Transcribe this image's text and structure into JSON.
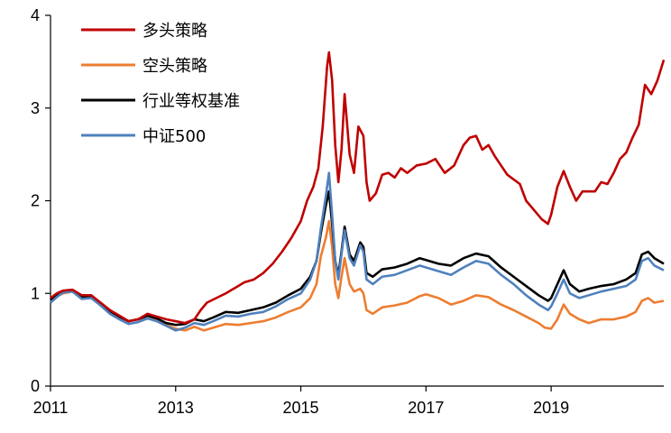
{
  "chart_data": {
    "type": "line",
    "title": "",
    "xlabel": "",
    "ylabel": "",
    "xlim": [
      2011.0,
      2020.8
    ],
    "ylim": [
      0,
      4
    ],
    "x_ticks": [
      "2011",
      "2013",
      "2015",
      "2017",
      "2019"
    ],
    "y_ticks": [
      "0",
      "1",
      "2",
      "3",
      "4"
    ],
    "grid": false,
    "legend_position": "top-left",
    "series": [
      {
        "name": "多头策略",
        "color": "#c00000",
        "points": [
          [
            2011.0,
            0.95
          ],
          [
            2011.1,
            1.0
          ],
          [
            2011.2,
            1.03
          ],
          [
            2011.35,
            1.04
          ],
          [
            2011.5,
            0.98
          ],
          [
            2011.65,
            0.98
          ],
          [
            2011.8,
            0.9
          ],
          [
            2011.95,
            0.82
          ],
          [
            2012.1,
            0.76
          ],
          [
            2012.25,
            0.7
          ],
          [
            2012.4,
            0.72
          ],
          [
            2012.55,
            0.78
          ],
          [
            2012.7,
            0.75
          ],
          [
            2012.85,
            0.72
          ],
          [
            2013.0,
            0.7
          ],
          [
            2013.15,
            0.68
          ],
          [
            2013.3,
            0.72
          ],
          [
            2013.4,
            0.82
          ],
          [
            2013.5,
            0.9
          ],
          [
            2013.65,
            0.95
          ],
          [
            2013.8,
            1.0
          ],
          [
            2013.95,
            1.06
          ],
          [
            2014.1,
            1.12
          ],
          [
            2014.25,
            1.15
          ],
          [
            2014.4,
            1.22
          ],
          [
            2014.55,
            1.32
          ],
          [
            2014.7,
            1.45
          ],
          [
            2014.85,
            1.6
          ],
          [
            2015.0,
            1.78
          ],
          [
            2015.1,
            2.0
          ],
          [
            2015.2,
            2.15
          ],
          [
            2015.28,
            2.35
          ],
          [
            2015.35,
            2.8
          ],
          [
            2015.42,
            3.45
          ],
          [
            2015.45,
            3.6
          ],
          [
            2015.5,
            3.3
          ],
          [
            2015.55,
            2.6
          ],
          [
            2015.6,
            2.2
          ],
          [
            2015.65,
            2.55
          ],
          [
            2015.7,
            3.15
          ],
          [
            2015.78,
            2.5
          ],
          [
            2015.85,
            2.3
          ],
          [
            2015.92,
            2.8
          ],
          [
            2016.0,
            2.7
          ],
          [
            2016.05,
            2.2
          ],
          [
            2016.1,
            2.0
          ],
          [
            2016.2,
            2.08
          ],
          [
            2016.3,
            2.28
          ],
          [
            2016.4,
            2.3
          ],
          [
            2016.5,
            2.25
          ],
          [
            2016.6,
            2.35
          ],
          [
            2016.7,
            2.3
          ],
          [
            2016.85,
            2.38
          ],
          [
            2017.0,
            2.4
          ],
          [
            2017.15,
            2.45
          ],
          [
            2017.3,
            2.3
          ],
          [
            2017.45,
            2.38
          ],
          [
            2017.6,
            2.6
          ],
          [
            2017.7,
            2.68
          ],
          [
            2017.8,
            2.7
          ],
          [
            2017.9,
            2.55
          ],
          [
            2018.0,
            2.6
          ],
          [
            2018.1,
            2.48
          ],
          [
            2018.3,
            2.28
          ],
          [
            2018.5,
            2.18
          ],
          [
            2018.6,
            2.0
          ],
          [
            2018.75,
            1.88
          ],
          [
            2018.85,
            1.8
          ],
          [
            2018.95,
            1.75
          ],
          [
            2019.0,
            1.85
          ],
          [
            2019.1,
            2.15
          ],
          [
            2019.2,
            2.32
          ],
          [
            2019.3,
            2.15
          ],
          [
            2019.4,
            2.0
          ],
          [
            2019.5,
            2.1
          ],
          [
            2019.6,
            2.1
          ],
          [
            2019.7,
            2.1
          ],
          [
            2019.8,
            2.2
          ],
          [
            2019.9,
            2.18
          ],
          [
            2020.0,
            2.3
          ],
          [
            2020.1,
            2.45
          ],
          [
            2020.2,
            2.52
          ],
          [
            2020.3,
            2.68
          ],
          [
            2020.4,
            2.82
          ],
          [
            2020.5,
            3.25
          ],
          [
            2020.6,
            3.15
          ],
          [
            2020.7,
            3.3
          ],
          [
            2020.8,
            3.52
          ]
        ]
      },
      {
        "name": "空头策略",
        "color": "#ed7d31",
        "points": [
          [
            2011.0,
            0.92
          ],
          [
            2011.1,
            0.97
          ],
          [
            2011.2,
            1.0
          ],
          [
            2011.35,
            1.02
          ],
          [
            2011.5,
            0.95
          ],
          [
            2011.65,
            0.95
          ],
          [
            2011.8,
            0.88
          ],
          [
            2011.95,
            0.8
          ],
          [
            2012.1,
            0.74
          ],
          [
            2012.25,
            0.7
          ],
          [
            2012.4,
            0.72
          ],
          [
            2012.55,
            0.76
          ],
          [
            2012.7,
            0.72
          ],
          [
            2012.85,
            0.66
          ],
          [
            2013.0,
            0.62
          ],
          [
            2013.15,
            0.6
          ],
          [
            2013.3,
            0.64
          ],
          [
            2013.45,
            0.6
          ],
          [
            2013.6,
            0.63
          ],
          [
            2013.8,
            0.67
          ],
          [
            2014.0,
            0.66
          ],
          [
            2014.2,
            0.68
          ],
          [
            2014.4,
            0.7
          ],
          [
            2014.6,
            0.74
          ],
          [
            2014.8,
            0.8
          ],
          [
            2015.0,
            0.85
          ],
          [
            2015.15,
            0.95
          ],
          [
            2015.25,
            1.1
          ],
          [
            2015.32,
            1.4
          ],
          [
            2015.4,
            1.6
          ],
          [
            2015.45,
            1.78
          ],
          [
            2015.5,
            1.5
          ],
          [
            2015.55,
            1.1
          ],
          [
            2015.6,
            0.95
          ],
          [
            2015.65,
            1.18
          ],
          [
            2015.7,
            1.38
          ],
          [
            2015.78,
            1.1
          ],
          [
            2015.85,
            1.02
          ],
          [
            2015.95,
            1.05
          ],
          [
            2016.0,
            1.0
          ],
          [
            2016.05,
            0.82
          ],
          [
            2016.15,
            0.78
          ],
          [
            2016.3,
            0.85
          ],
          [
            2016.5,
            0.87
          ],
          [
            2016.7,
            0.9
          ],
          [
            2016.9,
            0.97
          ],
          [
            2017.0,
            0.99
          ],
          [
            2017.2,
            0.95
          ],
          [
            2017.4,
            0.88
          ],
          [
            2017.6,
            0.92
          ],
          [
            2017.8,
            0.98
          ],
          [
            2018.0,
            0.96
          ],
          [
            2018.2,
            0.88
          ],
          [
            2018.4,
            0.82
          ],
          [
            2018.6,
            0.75
          ],
          [
            2018.8,
            0.68
          ],
          [
            2018.9,
            0.63
          ],
          [
            2019.0,
            0.62
          ],
          [
            2019.1,
            0.72
          ],
          [
            2019.2,
            0.88
          ],
          [
            2019.3,
            0.78
          ],
          [
            2019.45,
            0.72
          ],
          [
            2019.6,
            0.68
          ],
          [
            2019.8,
            0.72
          ],
          [
            2020.0,
            0.72
          ],
          [
            2020.2,
            0.75
          ],
          [
            2020.35,
            0.8
          ],
          [
            2020.45,
            0.92
          ],
          [
            2020.55,
            0.95
          ],
          [
            2020.65,
            0.9
          ],
          [
            2020.8,
            0.92
          ]
        ]
      },
      {
        "name": "行业等权基准",
        "color": "#000000",
        "points": [
          [
            2011.0,
            0.93
          ],
          [
            2011.1,
            0.98
          ],
          [
            2011.2,
            1.02
          ],
          [
            2011.35,
            1.03
          ],
          [
            2011.5,
            0.96
          ],
          [
            2011.65,
            0.96
          ],
          [
            2011.8,
            0.89
          ],
          [
            2011.95,
            0.81
          ],
          [
            2012.1,
            0.75
          ],
          [
            2012.25,
            0.7
          ],
          [
            2012.4,
            0.72
          ],
          [
            2012.55,
            0.76
          ],
          [
            2012.7,
            0.73
          ],
          [
            2012.85,
            0.68
          ],
          [
            2013.0,
            0.66
          ],
          [
            2013.15,
            0.67
          ],
          [
            2013.3,
            0.72
          ],
          [
            2013.45,
            0.7
          ],
          [
            2013.6,
            0.74
          ],
          [
            2013.8,
            0.8
          ],
          [
            2014.0,
            0.79
          ],
          [
            2014.2,
            0.82
          ],
          [
            2014.4,
            0.85
          ],
          [
            2014.6,
            0.9
          ],
          [
            2014.8,
            0.98
          ],
          [
            2015.0,
            1.05
          ],
          [
            2015.15,
            1.18
          ],
          [
            2015.25,
            1.35
          ],
          [
            2015.32,
            1.65
          ],
          [
            2015.4,
            1.95
          ],
          [
            2015.45,
            2.1
          ],
          [
            2015.5,
            1.75
          ],
          [
            2015.55,
            1.35
          ],
          [
            2015.6,
            1.2
          ],
          [
            2015.65,
            1.45
          ],
          [
            2015.7,
            1.72
          ],
          [
            2015.78,
            1.42
          ],
          [
            2015.85,
            1.35
          ],
          [
            2015.95,
            1.55
          ],
          [
            2016.0,
            1.5
          ],
          [
            2016.05,
            1.22
          ],
          [
            2016.15,
            1.18
          ],
          [
            2016.3,
            1.26
          ],
          [
            2016.5,
            1.28
          ],
          [
            2016.7,
            1.32
          ],
          [
            2016.9,
            1.38
          ],
          [
            2017.0,
            1.36
          ],
          [
            2017.2,
            1.32
          ],
          [
            2017.4,
            1.3
          ],
          [
            2017.6,
            1.38
          ],
          [
            2017.8,
            1.43
          ],
          [
            2018.0,
            1.4
          ],
          [
            2018.2,
            1.28
          ],
          [
            2018.4,
            1.18
          ],
          [
            2018.6,
            1.08
          ],
          [
            2018.8,
            0.98
          ],
          [
            2018.95,
            0.92
          ],
          [
            2019.0,
            0.95
          ],
          [
            2019.1,
            1.1
          ],
          [
            2019.2,
            1.25
          ],
          [
            2019.3,
            1.1
          ],
          [
            2019.45,
            1.02
          ],
          [
            2019.6,
            1.05
          ],
          [
            2019.8,
            1.08
          ],
          [
            2020.0,
            1.1
          ],
          [
            2020.2,
            1.15
          ],
          [
            2020.35,
            1.22
          ],
          [
            2020.45,
            1.42
          ],
          [
            2020.55,
            1.45
          ],
          [
            2020.65,
            1.38
          ],
          [
            2020.8,
            1.32
          ]
        ]
      },
      {
        "name": "中证500",
        "color": "#4f81bd",
        "points": [
          [
            2011.0,
            0.9
          ],
          [
            2011.1,
            0.96
          ],
          [
            2011.2,
            1.01
          ],
          [
            2011.35,
            1.02
          ],
          [
            2011.5,
            0.94
          ],
          [
            2011.65,
            0.95
          ],
          [
            2011.8,
            0.87
          ],
          [
            2011.95,
            0.78
          ],
          [
            2012.1,
            0.72
          ],
          [
            2012.25,
            0.67
          ],
          [
            2012.4,
            0.69
          ],
          [
            2012.55,
            0.73
          ],
          [
            2012.7,
            0.7
          ],
          [
            2012.85,
            0.65
          ],
          [
            2013.0,
            0.6
          ],
          [
            2013.15,
            0.63
          ],
          [
            2013.3,
            0.68
          ],
          [
            2013.45,
            0.66
          ],
          [
            2013.6,
            0.7
          ],
          [
            2013.8,
            0.76
          ],
          [
            2014.0,
            0.75
          ],
          [
            2014.2,
            0.78
          ],
          [
            2014.4,
            0.8
          ],
          [
            2014.6,
            0.86
          ],
          [
            2014.8,
            0.94
          ],
          [
            2015.0,
            1.0
          ],
          [
            2015.15,
            1.15
          ],
          [
            2015.25,
            1.35
          ],
          [
            2015.32,
            1.7
          ],
          [
            2015.4,
            2.05
          ],
          [
            2015.45,
            2.3
          ],
          [
            2015.5,
            1.85
          ],
          [
            2015.55,
            1.35
          ],
          [
            2015.6,
            1.15
          ],
          [
            2015.65,
            1.42
          ],
          [
            2015.7,
            1.68
          ],
          [
            2015.78,
            1.38
          ],
          [
            2015.85,
            1.3
          ],
          [
            2015.95,
            1.52
          ],
          [
            2016.0,
            1.45
          ],
          [
            2016.05,
            1.15
          ],
          [
            2016.15,
            1.1
          ],
          [
            2016.3,
            1.18
          ],
          [
            2016.5,
            1.2
          ],
          [
            2016.7,
            1.25
          ],
          [
            2016.9,
            1.3
          ],
          [
            2017.0,
            1.28
          ],
          [
            2017.2,
            1.24
          ],
          [
            2017.4,
            1.2
          ],
          [
            2017.6,
            1.28
          ],
          [
            2017.8,
            1.35
          ],
          [
            2018.0,
            1.32
          ],
          [
            2018.2,
            1.2
          ],
          [
            2018.4,
            1.1
          ],
          [
            2018.6,
            0.98
          ],
          [
            2018.8,
            0.88
          ],
          [
            2018.95,
            0.82
          ],
          [
            2019.0,
            0.86
          ],
          [
            2019.1,
            1.0
          ],
          [
            2019.2,
            1.15
          ],
          [
            2019.3,
            1.0
          ],
          [
            2019.45,
            0.95
          ],
          [
            2019.6,
            0.98
          ],
          [
            2019.8,
            1.02
          ],
          [
            2020.0,
            1.05
          ],
          [
            2020.2,
            1.08
          ],
          [
            2020.35,
            1.15
          ],
          [
            2020.45,
            1.35
          ],
          [
            2020.55,
            1.38
          ],
          [
            2020.65,
            1.3
          ],
          [
            2020.8,
            1.25
          ]
        ]
      }
    ]
  }
}
